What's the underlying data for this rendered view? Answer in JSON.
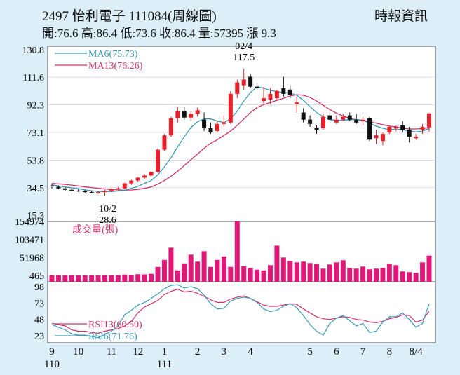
{
  "header": {
    "title": "2497  怡利電子 111084(周線圖)",
    "stats": "開:76.6 高:86.4 低:73.6 收:86.4 量:57395 漲 9.3",
    "brand": "時報資訊"
  },
  "chart_data": [
    {
      "type": "candlestick",
      "y_ticks": [
        130.8,
        111.6,
        92.3,
        73.1,
        53.8,
        34.5,
        15.3
      ],
      "ylim": [
        15.3,
        130.8
      ],
      "legend": [
        {
          "label": "MA6(75.73)",
          "color": "#3c9ab8"
        },
        {
          "label": "MA13(76.26)",
          "color": "#d0306a"
        }
      ],
      "annotations": [
        {
          "label": "10/2",
          "value": "28.6",
          "index": 8
        },
        {
          "label": "02/4",
          "value": "117.5",
          "index": 29
        }
      ],
      "up_color": "#e8202a",
      "down_color": "#111111",
      "candles": [
        [
          36.0,
          37.0,
          34.0,
          35.5
        ],
        [
          35.2,
          36.0,
          33.5,
          34.0
        ],
        [
          34.0,
          35.0,
          32.5,
          33.0
        ],
        [
          33.0,
          34.0,
          31.8,
          32.5
        ],
        [
          32.5,
          33.5,
          31.5,
          32.0
        ],
        [
          32.0,
          33.0,
          31.0,
          31.5
        ],
        [
          31.5,
          32.5,
          30.5,
          31.0
        ],
        [
          31.0,
          32.0,
          30.0,
          31.5
        ],
        [
          31.5,
          33.0,
          28.6,
          32.5
        ],
        [
          32.5,
          34.0,
          31.5,
          33.5
        ],
        [
          33.5,
          35.0,
          32.5,
          34.0
        ],
        [
          34.0,
          38.0,
          33.5,
          37.5
        ],
        [
          37.5,
          40.0,
          36.5,
          39.5
        ],
        [
          39.5,
          42.0,
          38.5,
          41.5
        ],
        [
          41.5,
          44.0,
          40.5,
          43.0
        ],
        [
          43.0,
          46.0,
          42.0,
          45.5
        ],
        [
          45.5,
          62.0,
          45.0,
          61.0
        ],
        [
          61.0,
          72.0,
          60.0,
          71.0
        ],
        [
          71.0,
          84.0,
          70.0,
          83.0
        ],
        [
          83.0,
          91.0,
          80.0,
          88.0
        ],
        [
          88.0,
          91.0,
          82.0,
          83.5
        ],
        [
          83.5,
          88.0,
          81.0,
          86.0
        ],
        [
          86.0,
          90.5,
          84.0,
          88.5
        ],
        [
          82.0,
          87.0,
          74.0,
          76.0
        ],
        [
          76.0,
          80.0,
          72.0,
          73.0
        ],
        [
          74.0,
          81.0,
          73.0,
          79.0
        ],
        [
          79.0,
          85.0,
          77.0,
          80.0
        ],
        [
          80.0,
          102.0,
          79.0,
          100.0
        ],
        [
          100.0,
          110.0,
          97.0,
          108.0
        ],
        [
          106.0,
          117.5,
          103.0,
          110.0
        ],
        [
          112.0,
          114.0,
          104.0,
          105.0
        ],
        [
          105.0,
          107.0,
          103.0,
          104.0
        ],
        [
          95.0,
          105.0,
          93.0,
          97.0
        ],
        [
          96.0,
          104.0,
          93.0,
          100.0
        ],
        [
          97.0,
          103.0,
          96.0,
          102.0
        ],
        [
          104.0,
          112.0,
          98.0,
          100.0
        ],
        [
          103.0,
          106.0,
          97.0,
          99.0
        ],
        [
          93.0,
          98.0,
          87.0,
          94.0
        ],
        [
          87.0,
          90.0,
          80.0,
          82.0
        ],
        [
          82.0,
          85.0,
          77.0,
          79.0
        ],
        [
          76.0,
          78.0,
          72.0,
          75.0
        ],
        [
          76.0,
          86.0,
          75.0,
          84.0
        ],
        [
          85.0,
          87.0,
          81.0,
          82.0
        ],
        [
          80.0,
          85.0,
          79.0,
          82.0
        ],
        [
          82.0,
          86.0,
          81.0,
          84.0
        ],
        [
          85.0,
          87.0,
          81.0,
          82.0
        ],
        [
          82.0,
          86.0,
          79.0,
          80.0
        ],
        [
          81.0,
          84.0,
          78.0,
          82.0
        ],
        [
          83.0,
          84.0,
          67.0,
          68.0
        ],
        [
          69.0,
          75.0,
          65.0,
          71.0
        ],
        [
          67.0,
          73.0,
          64.0,
          72.0
        ],
        [
          73.0,
          78.0,
          72.0,
          77.0
        ],
        [
          76.0,
          78.0,
          74.0,
          77.0
        ],
        [
          78.0,
          81.0,
          73.0,
          75.0
        ],
        [
          75.0,
          77.0,
          66.0,
          70.0
        ],
        [
          69.0,
          72.0,
          68.0,
          70.0
        ],
        [
          75.0,
          79.0,
          72.0,
          77.0
        ],
        [
          76.6,
          86.4,
          73.6,
          86.4
        ]
      ],
      "ma6": [
        36.5,
        35.8,
        35.0,
        34.4,
        33.8,
        33.0,
        32.4,
        31.9,
        31.7,
        31.8,
        32.2,
        32.8,
        34.0,
        35.5,
        37.5,
        39.5,
        43.5,
        49.0,
        55.5,
        63.0,
        70.0,
        76.5,
        80.5,
        82.5,
        82.5,
        81.0,
        80.0,
        82.5,
        88.0,
        95.0,
        101.0,
        105.0,
        104.0,
        102.5,
        101.5,
        101.0,
        100.5,
        99.0,
        95.5,
        91.0,
        87.0,
        84.0,
        82.0,
        81.5,
        81.5,
        82.0,
        82.0,
        81.5,
        79.5,
        77.5,
        76.0,
        75.0,
        75.5,
        75.0,
        74.0,
        73.5,
        74.0,
        75.73
      ],
      "ma13": [
        37.5,
        37.2,
        36.8,
        36.3,
        35.7,
        35.1,
        34.6,
        34.1,
        33.6,
        33.2,
        32.9,
        32.8,
        32.9,
        33.3,
        34.0,
        35.0,
        37.0,
        39.5,
        42.5,
        46.0,
        50.0,
        54.0,
        58.0,
        62.0,
        65.5,
        68.0,
        71.0,
        74.0,
        78.0,
        82.5,
        87.0,
        90.5,
        92.5,
        94.0,
        95.5,
        97.0,
        98.5,
        99.5,
        99.0,
        97.5,
        95.0,
        92.0,
        89.0,
        86.5,
        84.5,
        83.0,
        82.0,
        81.5,
        80.5,
        79.5,
        78.5,
        77.5,
        77.0,
        76.0,
        75.5,
        75.5,
        75.8,
        76.26
      ]
    },
    {
      "type": "bar",
      "y_ticks": [
        154974,
        103471,
        51968,
        465
      ],
      "ylim": [
        465,
        154974
      ],
      "legend": [
        {
          "label": "成交量(張)",
          "color": "#d0306a"
        }
      ],
      "bar_color": "#e01878",
      "values": [
        1000,
        1500,
        1000,
        1500,
        1000,
        1000,
        1500,
        1000,
        1500,
        1000,
        1000,
        3000,
        2500,
        4000,
        3500,
        5000,
        25000,
        45000,
        80000,
        15000,
        35000,
        60000,
        40000,
        70000,
        25000,
        45000,
        55000,
        25000,
        154974,
        27000,
        22000,
        17000,
        15000,
        30000,
        86000,
        52000,
        42000,
        38000,
        40000,
        36000,
        34000,
        20000,
        32000,
        38000,
        44000,
        22000,
        20000,
        26000,
        18000,
        20000,
        22000,
        34000,
        30000,
        12000,
        10000,
        8000,
        38000,
        57395
      ]
    },
    {
      "type": "line",
      "y_ticks": [
        98,
        73,
        48,
        23
      ],
      "ylim": [
        15,
        104
      ],
      "legend": [
        {
          "label": "RSI13(60.50)",
          "color": "#d0306a"
        },
        {
          "label": "RSI6(71.76)",
          "color": "#3c9ab8"
        }
      ],
      "series": [
        {
          "values": [
            42,
            40,
            38,
            32,
            30,
            30,
            28,
            27,
            30,
            32,
            34,
            38,
            45,
            58,
            67,
            72,
            77,
            86,
            91,
            94,
            90,
            91,
            88,
            83,
            78,
            74,
            74,
            79,
            82,
            84,
            80,
            75,
            70,
            68,
            68,
            70,
            72,
            71,
            64,
            58,
            52,
            49,
            48,
            50,
            52,
            51,
            48,
            47,
            44,
            43,
            45,
            49,
            51,
            55,
            54,
            44,
            47,
            60.5
          ]
        },
        {
          "values": [
            40,
            36,
            32,
            26,
            24,
            24,
            22,
            20,
            25,
            30,
            38,
            55,
            62,
            70,
            74,
            80,
            87,
            95,
            100,
            101,
            96,
            98,
            95,
            85,
            72,
            64,
            65,
            76,
            80,
            82,
            80,
            74,
            64,
            60,
            62,
            68,
            72,
            66,
            54,
            40,
            30,
            24,
            42,
            50,
            54,
            46,
            38,
            42,
            28,
            30,
            44,
            52,
            52,
            58,
            48,
            36,
            42,
            71.76
          ]
        }
      ]
    }
  ],
  "x_axis": {
    "labels": [
      {
        "text": "9",
        "index": 0
      },
      {
        "text": "10",
        "index": 4
      },
      {
        "text": "11",
        "index": 9
      },
      {
        "text": "12",
        "index": 13
      },
      {
        "text": "1",
        "index": 17
      },
      {
        "text": "2",
        "index": 22
      },
      {
        "text": "3",
        "index": 26
      },
      {
        "text": "4",
        "index": 30
      },
      {
        "text": "5",
        "index": 39
      },
      {
        "text": "6",
        "index": 43
      },
      {
        "text": "7",
        "index": 47
      },
      {
        "text": "8",
        "index": 51
      },
      {
        "text": "8/4",
        "index": 55
      }
    ],
    "years": [
      {
        "text": "110",
        "index": 0
      },
      {
        "text": "111",
        "index": 17
      }
    ]
  }
}
